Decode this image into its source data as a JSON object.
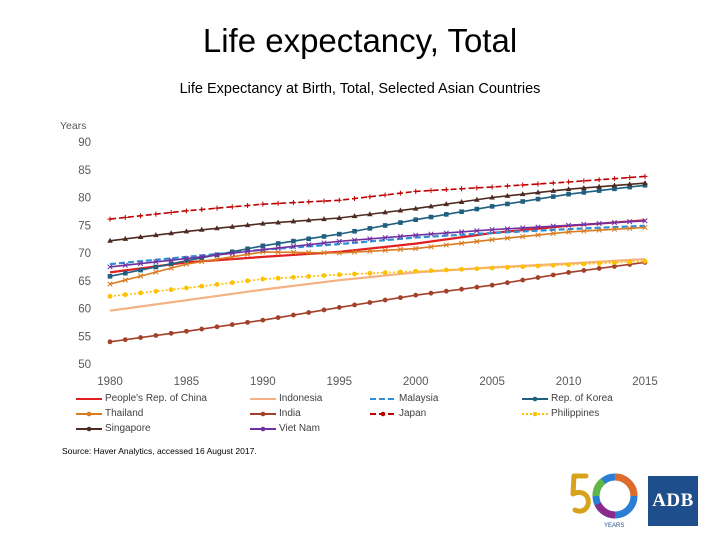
{
  "slide_title": "Life expectancy, Total",
  "source": "Source: Haver Analytics, accessed 16 August 2017.",
  "logos": {
    "anniversary_text": "YEARS",
    "adb_text": "ADB"
  },
  "chart_data": {
    "type": "line",
    "title": "Life Expectancy at Birth, Total, Selected Asian Countries",
    "ylabel": "Years",
    "xlabel": "",
    "ylim": [
      50,
      90
    ],
    "yticks": [
      50,
      55,
      60,
      65,
      70,
      75,
      80,
      85,
      90
    ],
    "xlim": [
      1980,
      2015
    ],
    "xticks": [
      1980,
      1985,
      1990,
      1995,
      2000,
      2005,
      2010,
      2015
    ],
    "grid": false,
    "legend_position": "bottom",
    "series": [
      {
        "name": "People's Rep. of China",
        "color": "#e02020",
        "marker": "none",
        "dash": "solid",
        "x": [
          1980,
          1985,
          1990,
          1995,
          2000,
          2005,
          2010,
          2015
        ],
        "values": [
          66.5,
          68.3,
          69.3,
          70.2,
          71.7,
          73.6,
          74.9,
          75.9
        ]
      },
      {
        "name": "Indonesia",
        "color": "#f4b183",
        "marker": "none",
        "dash": "solid",
        "x": [
          1980,
          1985,
          1990,
          1995,
          2000,
          2005,
          2010,
          2015
        ],
        "values": [
          59.6,
          61.5,
          63.4,
          65.1,
          66.5,
          67.4,
          68.1,
          68.9
        ]
      },
      {
        "name": "Malaysia",
        "color": "#2e8fd6",
        "marker": "none",
        "dash": "dashed",
        "x": [
          1980,
          1985,
          1990,
          1995,
          2000,
          2005,
          2010,
          2015
        ],
        "values": [
          68.0,
          69.3,
          70.6,
          71.6,
          72.8,
          73.6,
          74.3,
          74.9
        ]
      },
      {
        "name": "Rep. of Korea",
        "color": "#1f5f7f",
        "marker": "square",
        "dash": "solid",
        "x": [
          1980,
          1985,
          1990,
          1995,
          2000,
          2005,
          2010,
          2015
        ],
        "values": [
          65.8,
          68.6,
          71.3,
          73.4,
          76.0,
          78.4,
          80.6,
          82.2
        ]
      },
      {
        "name": "Thailand",
        "color": "#d97b1f",
        "marker": "x",
        "dash": "solid",
        "x": [
          1980,
          1985,
          1990,
          1995,
          2000,
          2005,
          2010,
          2015
        ],
        "values": [
          64.4,
          68.0,
          70.2,
          70.0,
          70.8,
          72.4,
          73.8,
          74.6
        ]
      },
      {
        "name": "India",
        "color": "#a3402a",
        "marker": "circle",
        "dash": "solid",
        "x": [
          1980,
          1985,
          1990,
          1995,
          2000,
          2005,
          2010,
          2015
        ],
        "values": [
          54.0,
          55.9,
          57.9,
          60.2,
          62.4,
          64.2,
          66.5,
          68.3
        ]
      },
      {
        "name": "Japan",
        "color": "#c00000",
        "marker": "plus",
        "dash": "dashed",
        "x": [
          1980,
          1985,
          1990,
          1995,
          2000,
          2005,
          2010,
          2015
        ],
        "values": [
          76.1,
          77.6,
          78.8,
          79.5,
          81.1,
          81.9,
          82.8,
          83.8
        ]
      },
      {
        "name": "Philippines",
        "color": "#ffc000",
        "marker": "circle",
        "dash": "dotted",
        "x": [
          1980,
          1985,
          1990,
          1995,
          2000,
          2005,
          2010,
          2015
        ],
        "values": [
          62.2,
          63.7,
          65.3,
          66.1,
          66.7,
          67.3,
          67.9,
          68.5
        ]
      },
      {
        "name": "Singapore",
        "color": "#4d2a22",
        "marker": "triangle",
        "dash": "solid",
        "x": [
          1980,
          1985,
          1990,
          1995,
          2000,
          2005,
          2010,
          2015
        ],
        "values": [
          72.2,
          73.9,
          75.3,
          76.3,
          78.0,
          80.0,
          81.5,
          82.6
        ]
      },
      {
        "name": "Viet Nam",
        "color": "#7030a0",
        "marker": "cross",
        "dash": "solid",
        "x": [
          1980,
          1985,
          1990,
          1995,
          2000,
          2005,
          2010,
          2015
        ],
        "values": [
          67.5,
          69.0,
          70.6,
          72.1,
          73.2,
          74.2,
          75.0,
          75.8
        ]
      }
    ]
  }
}
